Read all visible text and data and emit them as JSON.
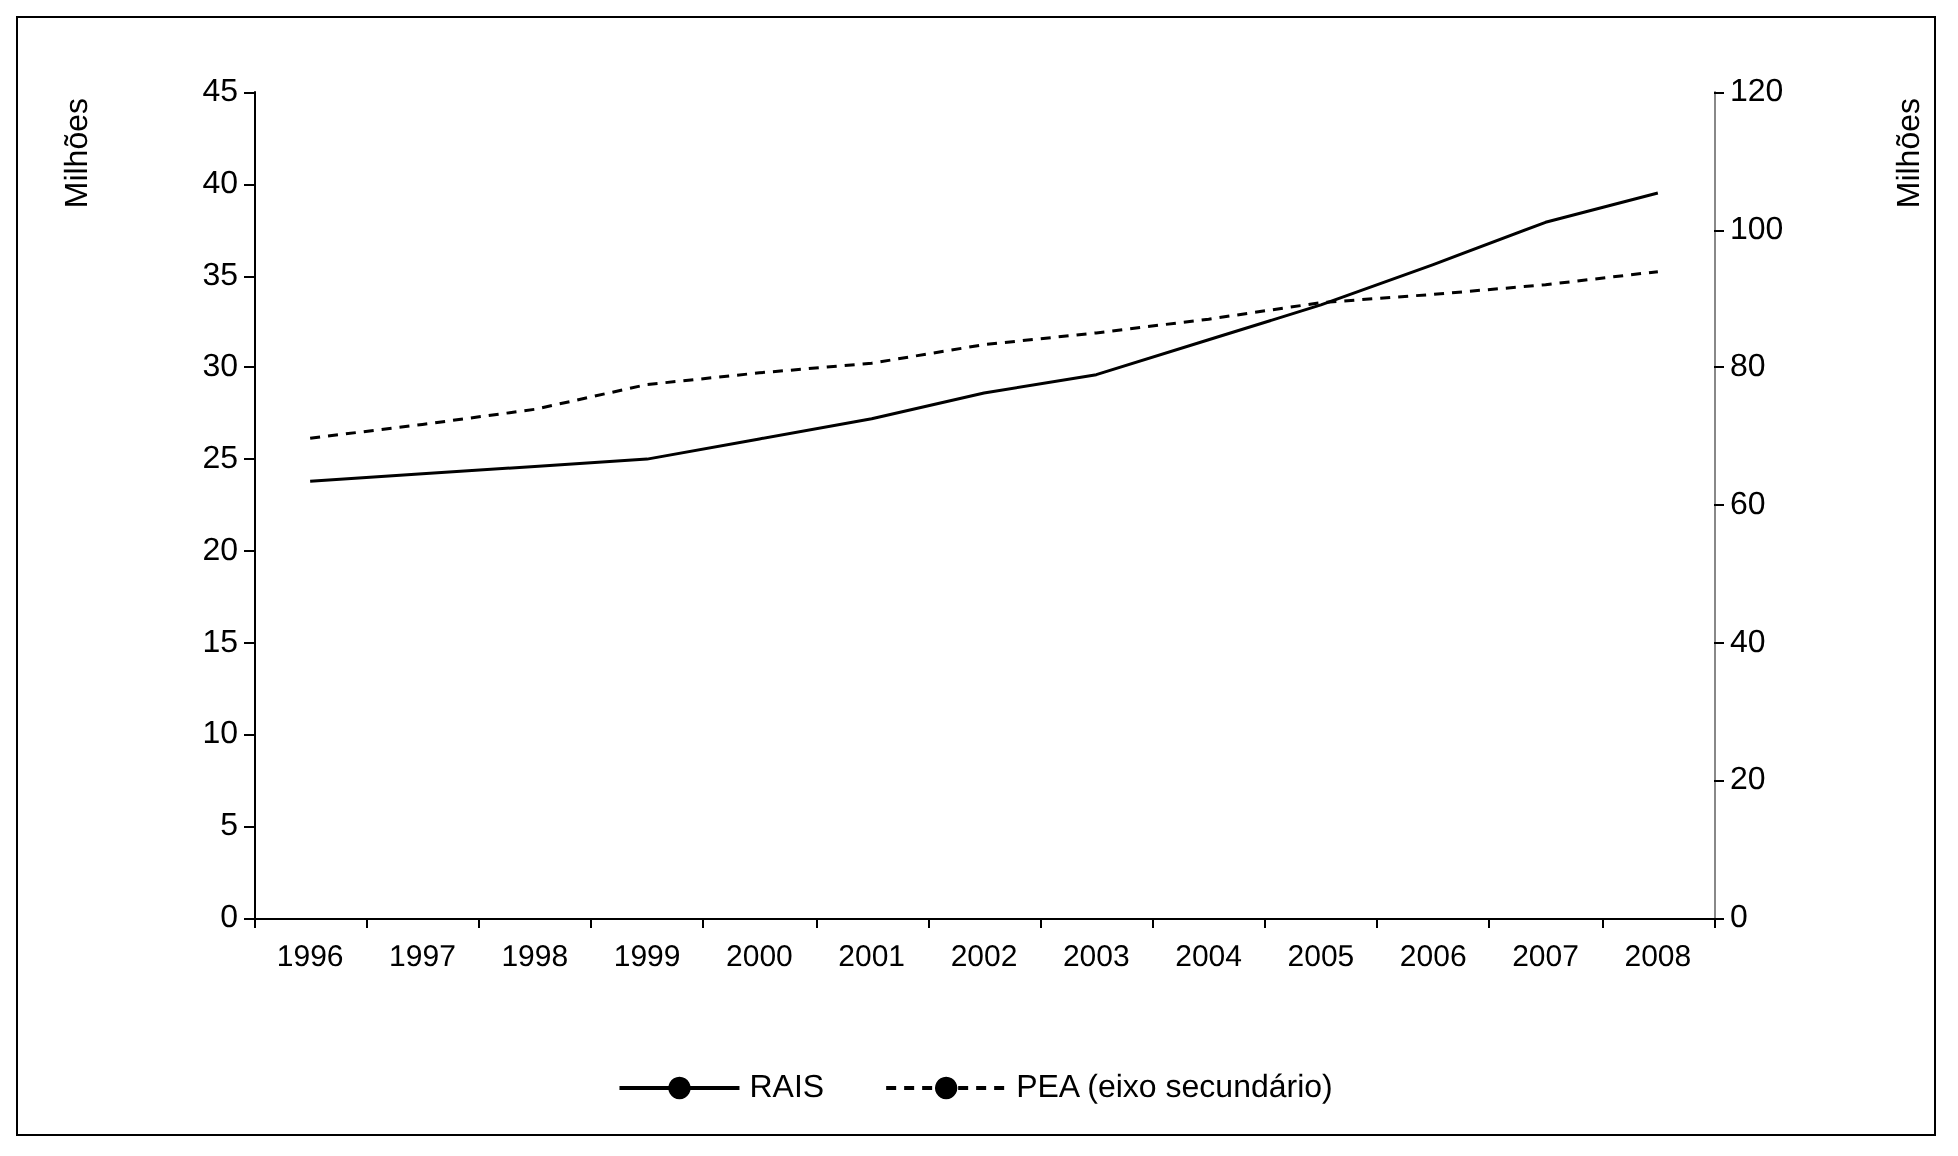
{
  "chart_data": {
    "type": "line",
    "categories": [
      "1996",
      "1997",
      "1998",
      "1999",
      "2000",
      "2001",
      "2002",
      "2003",
      "2004",
      "2005",
      "2006",
      "2007",
      "2008"
    ],
    "series": [
      {
        "name": "RAIS",
        "color": "#000000",
        "line_style": "solid",
        "values": [
          23.8,
          24.2,
          24.6,
          25.0,
          26.1,
          27.2,
          28.6,
          29.6,
          31.5,
          33.4,
          35.6,
          37.9,
          39.5
        ]
      },
      {
        "name": "PEA (eixo secundário)",
        "color": "#000000",
        "line_style": "dashed",
        "axis": "y2",
        "values": [
          69.7,
          71.7,
          73.9,
          77.5,
          79.2,
          80.6,
          83.3,
          85.0,
          87.0,
          89.4,
          90.6,
          92.0,
          93.9
        ]
      }
    ],
    "ylabel": "Milhões",
    "y2label": "Milhões",
    "ylim": [
      0,
      45
    ],
    "yticks": [
      0,
      5,
      10,
      15,
      20,
      25,
      30,
      35,
      40,
      45
    ],
    "y2lim": [
      0,
      120
    ],
    "y2ticks": [
      0,
      20,
      40,
      60,
      80,
      100,
      120
    ],
    "grid": false,
    "legend": "bottom",
    "marker": "none"
  }
}
